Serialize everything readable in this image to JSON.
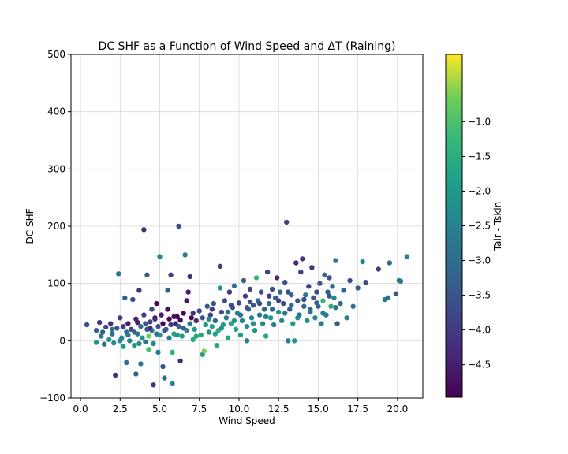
{
  "chart_data": {
    "type": "scatter",
    "title": "DC SHF as a Function of Wind Speed and ΔT (Raining)",
    "xlabel": "Wind Speed",
    "ylabel": "DC SHF",
    "xlim": [
      -0.6,
      21.6
    ],
    "ylim": [
      -100,
      500
    ],
    "xticks": [
      0.0,
      2.5,
      5.0,
      7.5,
      10.0,
      12.5,
      15.0,
      17.5,
      20.0
    ],
    "xtick_labels": [
      "0.0",
      "2.5",
      "5.0",
      "7.5",
      "10.0",
      "12.5",
      "15.0",
      "17.5",
      "20.0"
    ],
    "yticks": [
      -100,
      0,
      100,
      200,
      300,
      400,
      500
    ],
    "ytick_labels": [
      "−100",
      "0",
      "100",
      "200",
      "300",
      "400",
      "500"
    ],
    "grid": true,
    "colorbar": {
      "label": "Tair - Tskin",
      "range": [
        -4.97,
        -0.03
      ],
      "ticks": [
        -4.5,
        -4.0,
        -3.5,
        -3.0,
        -2.5,
        -2.0,
        -1.5,
        -1.0
      ],
      "tick_labels": [
        "−4.5",
        "−4.0",
        "−3.5",
        "−3.0",
        "−2.5",
        "−2.0",
        "−1.5",
        "−1.0"
      ],
      "colormap": "viridis"
    },
    "points": [
      [
        0.4,
        28,
        -3.6
      ],
      [
        1.0,
        18,
        -3.2
      ],
      [
        1.0,
        -3,
        -2.1
      ],
      [
        1.2,
        32,
        -4.0
      ],
      [
        1.3,
        8,
        -2.6
      ],
      [
        1.5,
        -6,
        -3.0
      ],
      [
        1.6,
        24,
        -3.8
      ],
      [
        1.8,
        2,
        -2.2
      ],
      [
        1.9,
        30,
        -4.2
      ],
      [
        2.0,
        12,
        -3.0
      ],
      [
        2.1,
        -4,
        -2.3
      ],
      [
        2.2,
        -60,
        -4.2
      ],
      [
        2.3,
        22,
        -3.5
      ],
      [
        2.4,
        117,
        -2.8
      ],
      [
        2.5,
        40,
        -4.0
      ],
      [
        2.6,
        5,
        -2.5
      ],
      [
        2.7,
        -10,
        -1.9
      ],
      [
        2.8,
        75,
        -3.3
      ],
      [
        2.9,
        15,
        -3.0
      ],
      [
        2.9,
        -38,
        -2.9
      ],
      [
        3.0,
        30,
        -4.6
      ],
      [
        3.1,
        0,
        -2.4
      ],
      [
        3.2,
        20,
        -3.7
      ],
      [
        3.3,
        72,
        -3.7
      ],
      [
        3.4,
        -8,
        -2.0
      ],
      [
        3.5,
        38,
        -4.4
      ],
      [
        3.5,
        -58,
        -3.2
      ],
      [
        3.6,
        12,
        -2.7
      ],
      [
        3.7,
        88,
        -4.1
      ],
      [
        3.8,
        25,
        -3.1
      ],
      [
        3.8,
        -40,
        -2.7
      ],
      [
        3.9,
        5,
        -2.2
      ],
      [
        4.0,
        45,
        -4.0
      ],
      [
        4.0,
        194,
        -4.3
      ],
      [
        4.1,
        -2,
        -2.8
      ],
      [
        4.2,
        20,
        -3.4
      ],
      [
        4.2,
        115,
        -3.4
      ],
      [
        4.3,
        -15,
        -1.1
      ],
      [
        4.3,
        8,
        -0.7
      ],
      [
        4.4,
        33,
        -3.9
      ],
      [
        4.5,
        18,
        -2.9
      ],
      [
        4.5,
        55,
        -3.8
      ],
      [
        4.6,
        -5,
        -2.3
      ],
      [
        4.6,
        -77,
        -4.1
      ],
      [
        4.7,
        40,
        -4.7
      ],
      [
        4.8,
        65,
        -4.9
      ],
      [
        4.9,
        25,
        -3.6
      ],
      [
        4.9,
        -20,
        -2.6
      ],
      [
        5.0,
        147,
        -2.4
      ],
      [
        5.0,
        10,
        -2.1
      ],
      [
        5.1,
        45,
        -4.5
      ],
      [
        5.2,
        -45,
        -3.4
      ],
      [
        5.2,
        30,
        -4.8
      ],
      [
        5.3,
        -65,
        -2.9
      ],
      [
        5.4,
        20,
        -3.0
      ],
      [
        5.5,
        88,
        -3.3
      ],
      [
        5.5,
        55,
        -4.8
      ],
      [
        5.6,
        38,
        -4.9
      ],
      [
        5.6,
        5,
        -2.6
      ],
      [
        5.7,
        115,
        -3.9
      ],
      [
        5.8,
        -20,
        -1.4
      ],
      [
        5.8,
        -75,
        -2.5
      ],
      [
        5.9,
        12,
        -1.8
      ],
      [
        6.0,
        30,
        -4.4
      ],
      [
        6.1,
        42,
        -4.9
      ],
      [
        6.2,
        200,
        -3.7
      ],
      [
        6.2,
        25,
        -3.2
      ],
      [
        6.3,
        -35,
        -4.3
      ],
      [
        6.4,
        8,
        -1.9
      ],
      [
        6.5,
        48,
        -4.8
      ],
      [
        6.6,
        150,
        -2.7
      ],
      [
        6.7,
        70,
        -4.6
      ],
      [
        6.7,
        18,
        -2.4
      ],
      [
        6.8,
        85,
        -4.5
      ],
      [
        6.9,
        112,
        -4.2
      ],
      [
        7.0,
        40,
        -4.8
      ],
      [
        7.1,
        2,
        -1.6
      ],
      [
        7.2,
        20,
        -2.0
      ],
      [
        7.3,
        35,
        -4.3
      ],
      [
        7.5,
        52,
        -3.8
      ],
      [
        7.6,
        10,
        -1.7
      ],
      [
        7.7,
        -24,
        -1.9
      ],
      [
        7.8,
        -18,
        -0.6
      ],
      [
        7.9,
        28,
        -2.0
      ],
      [
        8.0,
        60,
        -3.4
      ],
      [
        8.1,
        15,
        -2.2
      ],
      [
        8.2,
        45,
        -3.9
      ],
      [
        8.3,
        25,
        -1.8
      ],
      [
        8.4,
        65,
        -3.5
      ],
      [
        8.5,
        35,
        -3.1
      ],
      [
        8.6,
        -8,
        -1.6
      ],
      [
        8.7,
        18,
        -1.5
      ],
      [
        8.8,
        130,
        -4.1
      ],
      [
        8.8,
        92,
        -2.1
      ],
      [
        8.9,
        50,
        -3.6
      ],
      [
        9.0,
        28,
        -1.9
      ],
      [
        9.1,
        70,
        -3.7
      ],
      [
        9.2,
        40,
        -2.8
      ],
      [
        9.3,
        5,
        -1.7
      ],
      [
        9.4,
        85,
        -4.0
      ],
      [
        9.5,
        30,
        -1.6
      ],
      [
        9.6,
        58,
        -3.6
      ],
      [
        9.7,
        96,
        -2.9
      ],
      [
        9.8,
        20,
        -1.8
      ],
      [
        9.9,
        48,
        -2.5
      ],
      [
        10.0,
        66,
        -3.8
      ],
      [
        10.1,
        10,
        -1.9
      ],
      [
        10.2,
        35,
        -2.4
      ],
      [
        10.3,
        105,
        -3.3
      ],
      [
        10.4,
        78,
        -4.0
      ],
      [
        10.5,
        25,
        -2.2
      ],
      [
        10.5,
        0,
        -2.7
      ],
      [
        10.6,
        55,
        -3.2
      ],
      [
        10.7,
        90,
        -3.8
      ],
      [
        10.8,
        40,
        -2.5
      ],
      [
        10.9,
        62,
        -3.5
      ],
      [
        11.0,
        18,
        -2.0
      ],
      [
        11.1,
        110,
        -1.3
      ],
      [
        11.2,
        70,
        -3.0
      ],
      [
        11.3,
        45,
        -2.7
      ],
      [
        11.4,
        85,
        -3.6
      ],
      [
        11.5,
        30,
        -2.3
      ],
      [
        11.6,
        55,
        -3.2
      ],
      [
        11.7,
        8,
        -1.6
      ],
      [
        11.8,
        120,
        -3.9
      ],
      [
        11.9,
        65,
        -2.9
      ],
      [
        12.0,
        40,
        -2.0
      ],
      [
        12.1,
        90,
        -3.6
      ],
      [
        12.2,
        28,
        -2.6
      ],
      [
        12.3,
        75,
        -3.3
      ],
      [
        12.4,
        110,
        -4.4
      ],
      [
        12.5,
        50,
        -2.1
      ],
      [
        12.6,
        85,
        -3.0
      ],
      [
        12.7,
        35,
        -2.4
      ],
      [
        12.8,
        65,
        -3.7
      ],
      [
        12.9,
        102,
        -3.6
      ],
      [
        13.0,
        207,
        -3.9
      ],
      [
        13.1,
        0,
        -2.6
      ],
      [
        13.2,
        55,
        -3.4
      ],
      [
        13.3,
        80,
        -3.1
      ],
      [
        13.4,
        30,
        -1.9
      ],
      [
        13.5,
        0,
        -2.1
      ],
      [
        13.6,
        136,
        -4.3
      ],
      [
        13.7,
        70,
        -3.5
      ],
      [
        13.8,
        45,
        -2.8
      ],
      [
        13.9,
        120,
        -3.9
      ],
      [
        14.0,
        143,
        -4.2
      ],
      [
        14.1,
        60,
        -3.2
      ],
      [
        14.2,
        80,
        -2.7
      ],
      [
        14.3,
        35,
        -2.2
      ],
      [
        14.4,
        95,
        -3.8
      ],
      [
        14.5,
        55,
        -3.0
      ],
      [
        14.6,
        128,
        -4.1
      ],
      [
        14.7,
        75,
        -3.5
      ],
      [
        14.8,
        40,
        -2.5
      ],
      [
        14.9,
        85,
        -3.7
      ],
      [
        15.0,
        60,
        -3.2
      ],
      [
        15.1,
        100,
        -3.4
      ],
      [
        15.2,
        30,
        -2.6
      ],
      [
        15.3,
        70,
        -1.3
      ],
      [
        15.4,
        115,
        -3.0
      ],
      [
        15.5,
        45,
        -2.8
      ],
      [
        15.6,
        85,
        -3.3
      ],
      [
        15.7,
        110,
        -3.6
      ],
      [
        15.8,
        60,
        -1.5
      ],
      [
        15.9,
        95,
        -3.1
      ],
      [
        16.0,
        75,
        -2.4
      ],
      [
        16.1,
        140,
        -2.7
      ],
      [
        16.2,
        30,
        -3.5
      ],
      [
        16.4,
        65,
        -3.0
      ],
      [
        16.6,
        88,
        -3.2
      ],
      [
        16.8,
        40,
        -2.5
      ],
      [
        17.0,
        105,
        -3.8
      ],
      [
        17.2,
        60,
        -2.9
      ],
      [
        17.5,
        92,
        -3.3
      ],
      [
        17.8,
        138,
        -2.4
      ],
      [
        18.0,
        102,
        -3.6
      ],
      [
        18.8,
        125,
        -3.9
      ],
      [
        19.2,
        72,
        -2.6
      ],
      [
        19.4,
        75,
        -2.9
      ],
      [
        19.5,
        136,
        -3.0
      ],
      [
        19.9,
        82,
        -3.4
      ],
      [
        20.1,
        105,
        -3.1
      ],
      [
        20.2,
        104,
        -2.8
      ],
      [
        20.6,
        147,
        -2.6
      ],
      [
        2.0,
        20,
        -2.8
      ],
      [
        2.5,
        0,
        -2.5
      ],
      [
        3.0,
        10,
        -2.6
      ],
      [
        3.4,
        15,
        -3.2
      ],
      [
        3.7,
        -5,
        -2.3
      ],
      [
        4.1,
        30,
        -3.5
      ],
      [
        4.4,
        22,
        -4.2
      ],
      [
        4.8,
        12,
        -2.9
      ],
      [
        5.3,
        18,
        -3.6
      ],
      [
        5.7,
        28,
        -4.1
      ],
      [
        6.1,
        10,
        -2.0
      ],
      [
        6.5,
        22,
        -3.3
      ],
      [
        6.9,
        30,
        -2.8
      ],
      [
        7.3,
        8,
        -1.7
      ],
      [
        7.7,
        40,
        -3.4
      ],
      [
        8.1,
        38,
        -2.4
      ],
      [
        8.5,
        12,
        -1.8
      ],
      [
        8.9,
        22,
        -2.2
      ],
      [
        9.3,
        50,
        -3.0
      ],
      [
        9.7,
        35,
        -2.1
      ],
      [
        10.1,
        45,
        -2.9
      ],
      [
        10.5,
        58,
        -3.4
      ],
      [
        10.9,
        30,
        -2.2
      ],
      [
        11.3,
        65,
        -3.7
      ],
      [
        11.7,
        42,
        -2.6
      ],
      [
        12.1,
        55,
        -3.1
      ],
      [
        12.5,
        70,
        -3.8
      ],
      [
        12.9,
        48,
        -2.7
      ],
      [
        13.3,
        62,
        -3.2
      ],
      [
        13.7,
        40,
        -2.3
      ],
      [
        14.1,
        72,
        -3.6
      ],
      [
        14.5,
        50,
        -2.8
      ],
      [
        14.9,
        66,
        -3.3
      ],
      [
        15.3,
        48,
        -2.6
      ],
      [
        15.7,
        78,
        -3.5
      ],
      [
        16.1,
        58,
        -2.9
      ],
      [
        1.4,
        15,
        -3.4
      ],
      [
        2.7,
        25,
        -4.0
      ],
      [
        3.6,
        32,
        -4.6
      ],
      [
        4.7,
        38,
        -4.3
      ],
      [
        5.9,
        42,
        -4.7
      ],
      [
        6.3,
        36,
        -4.9
      ],
      [
        7.1,
        48,
        -4.2
      ],
      [
        8.3,
        55,
        -3.9
      ],
      [
        9.5,
        62,
        -3.7
      ],
      [
        10.7,
        68,
        -3.5
      ],
      [
        11.9,
        78,
        -3.9
      ],
      [
        13.1,
        85,
        -3.6
      ]
    ]
  }
}
